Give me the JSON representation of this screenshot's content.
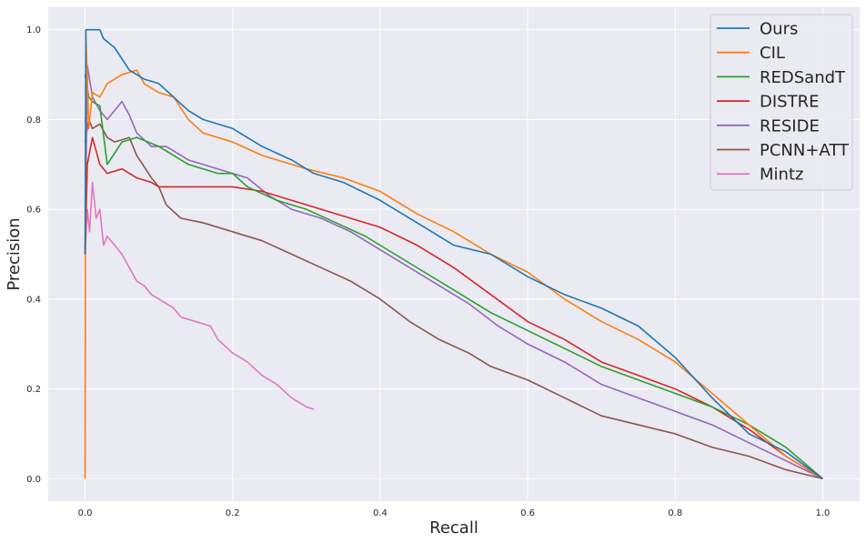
{
  "chart_data": {
    "type": "line",
    "title": "",
    "xlabel": "Recall",
    "ylabel": "Precision",
    "xlim": [
      -0.05,
      1.05
    ],
    "ylim": [
      -0.05,
      1.05
    ],
    "grid": true,
    "background": "#eaeaf2",
    "legend_position": "top-right",
    "x_ticks": [
      {
        "value": 0.0,
        "label": "0.0"
      },
      {
        "value": 0.2,
        "label": "0.2"
      },
      {
        "value": 0.4,
        "label": "0.4"
      },
      {
        "value": 0.6,
        "label": "0.6"
      },
      {
        "value": 0.8,
        "label": "0.8"
      },
      {
        "value": 1.0,
        "label": "1.0"
      }
    ],
    "y_ticks": [
      {
        "value": 0.0,
        "label": "0.0"
      },
      {
        "value": 0.2,
        "label": "0.2"
      },
      {
        "value": 0.4,
        "label": "0.4"
      },
      {
        "value": 0.6,
        "label": "0.6"
      },
      {
        "value": 0.8,
        "label": "0.8"
      },
      {
        "value": 1.0,
        "label": "1.0"
      }
    ],
    "series": [
      {
        "name": "Ours",
        "color": "#1f77b4",
        "points": [
          [
            0.0,
            0.5
          ],
          [
            0.001,
            1.0
          ],
          [
            0.02,
            1.0
          ],
          [
            0.025,
            0.98
          ],
          [
            0.04,
            0.96
          ],
          [
            0.06,
            0.91
          ],
          [
            0.08,
            0.89
          ],
          [
            0.1,
            0.88
          ],
          [
            0.12,
            0.85
          ],
          [
            0.14,
            0.82
          ],
          [
            0.16,
            0.8
          ],
          [
            0.2,
            0.78
          ],
          [
            0.24,
            0.74
          ],
          [
            0.28,
            0.71
          ],
          [
            0.31,
            0.68
          ],
          [
            0.35,
            0.66
          ],
          [
            0.4,
            0.62
          ],
          [
            0.45,
            0.57
          ],
          [
            0.5,
            0.52
          ],
          [
            0.55,
            0.5
          ],
          [
            0.6,
            0.45
          ],
          [
            0.65,
            0.41
          ],
          [
            0.7,
            0.38
          ],
          [
            0.75,
            0.34
          ],
          [
            0.8,
            0.27
          ],
          [
            0.85,
            0.18
          ],
          [
            0.9,
            0.1
          ],
          [
            0.95,
            0.06
          ],
          [
            1.0,
            0.0
          ]
        ]
      },
      {
        "name": "CIL",
        "color": "#ff7f0e",
        "points": [
          [
            0.0,
            0.0
          ],
          [
            0.001,
            1.0
          ],
          [
            0.005,
            0.78
          ],
          [
            0.01,
            0.86
          ],
          [
            0.02,
            0.85
          ],
          [
            0.03,
            0.88
          ],
          [
            0.05,
            0.9
          ],
          [
            0.07,
            0.91
          ],
          [
            0.08,
            0.88
          ],
          [
            0.1,
            0.86
          ],
          [
            0.12,
            0.85
          ],
          [
            0.14,
            0.8
          ],
          [
            0.16,
            0.77
          ],
          [
            0.2,
            0.75
          ],
          [
            0.24,
            0.72
          ],
          [
            0.28,
            0.7
          ],
          [
            0.3,
            0.69
          ],
          [
            0.35,
            0.67
          ],
          [
            0.4,
            0.64
          ],
          [
            0.45,
            0.59
          ],
          [
            0.5,
            0.55
          ],
          [
            0.55,
            0.5
          ],
          [
            0.6,
            0.46
          ],
          [
            0.65,
            0.4
          ],
          [
            0.7,
            0.35
          ],
          [
            0.75,
            0.31
          ],
          [
            0.8,
            0.26
          ],
          [
            0.85,
            0.19
          ],
          [
            0.9,
            0.12
          ],
          [
            0.95,
            0.05
          ],
          [
            1.0,
            0.0
          ]
        ]
      },
      {
        "name": "REDSandT",
        "color": "#2ca02c",
        "points": [
          [
            0.0,
            0.9
          ],
          [
            0.005,
            0.85
          ],
          [
            0.01,
            0.84
          ],
          [
            0.02,
            0.83
          ],
          [
            0.03,
            0.7
          ],
          [
            0.05,
            0.75
          ],
          [
            0.07,
            0.76
          ],
          [
            0.1,
            0.74
          ],
          [
            0.14,
            0.7
          ],
          [
            0.18,
            0.68
          ],
          [
            0.2,
            0.68
          ],
          [
            0.22,
            0.65
          ],
          [
            0.26,
            0.62
          ],
          [
            0.3,
            0.6
          ],
          [
            0.34,
            0.57
          ],
          [
            0.38,
            0.54
          ],
          [
            0.42,
            0.5
          ],
          [
            0.46,
            0.46
          ],
          [
            0.5,
            0.42
          ],
          [
            0.55,
            0.37
          ],
          [
            0.6,
            0.33
          ],
          [
            0.65,
            0.29
          ],
          [
            0.7,
            0.25
          ],
          [
            0.75,
            0.22
          ],
          [
            0.8,
            0.19
          ],
          [
            0.85,
            0.16
          ],
          [
            0.9,
            0.12
          ],
          [
            0.95,
            0.07
          ],
          [
            1.0,
            0.0
          ]
        ]
      },
      {
        "name": "DISTRE",
        "color": "#d62728",
        "points": [
          [
            0.0,
            0.5
          ],
          [
            0.003,
            0.7
          ],
          [
            0.01,
            0.76
          ],
          [
            0.015,
            0.73
          ],
          [
            0.02,
            0.7
          ],
          [
            0.03,
            0.68
          ],
          [
            0.05,
            0.69
          ],
          [
            0.07,
            0.67
          ],
          [
            0.09,
            0.66
          ],
          [
            0.1,
            0.65
          ],
          [
            0.14,
            0.65
          ],
          [
            0.2,
            0.65
          ],
          [
            0.24,
            0.64
          ],
          [
            0.28,
            0.62
          ],
          [
            0.32,
            0.6
          ],
          [
            0.36,
            0.58
          ],
          [
            0.4,
            0.56
          ],
          [
            0.45,
            0.52
          ],
          [
            0.5,
            0.47
          ],
          [
            0.55,
            0.41
          ],
          [
            0.6,
            0.35
          ],
          [
            0.65,
            0.31
          ],
          [
            0.7,
            0.26
          ],
          [
            0.75,
            0.23
          ],
          [
            0.8,
            0.2
          ],
          [
            0.85,
            0.16
          ],
          [
            0.9,
            0.11
          ],
          [
            0.95,
            0.05
          ],
          [
            1.0,
            0.0
          ]
        ]
      },
      {
        "name": "RESIDE",
        "color": "#9467bd",
        "points": [
          [
            0.0,
            0.5
          ],
          [
            0.003,
            0.92
          ],
          [
            0.01,
            0.85
          ],
          [
            0.02,
            0.82
          ],
          [
            0.03,
            0.8
          ],
          [
            0.05,
            0.84
          ],
          [
            0.06,
            0.81
          ],
          [
            0.07,
            0.77
          ],
          [
            0.09,
            0.74
          ],
          [
            0.11,
            0.74
          ],
          [
            0.14,
            0.71
          ],
          [
            0.18,
            0.69
          ],
          [
            0.22,
            0.67
          ],
          [
            0.25,
            0.63
          ],
          [
            0.28,
            0.6
          ],
          [
            0.32,
            0.58
          ],
          [
            0.36,
            0.55
          ],
          [
            0.4,
            0.51
          ],
          [
            0.44,
            0.47
          ],
          [
            0.48,
            0.43
          ],
          [
            0.52,
            0.39
          ],
          [
            0.56,
            0.34
          ],
          [
            0.6,
            0.3
          ],
          [
            0.65,
            0.26
          ],
          [
            0.7,
            0.21
          ],
          [
            0.75,
            0.18
          ],
          [
            0.8,
            0.15
          ],
          [
            0.85,
            0.12
          ],
          [
            0.9,
            0.08
          ],
          [
            0.95,
            0.04
          ],
          [
            1.0,
            0.0
          ]
        ]
      },
      {
        "name": "PCNN+ATT",
        "color": "#8c564b",
        "points": [
          [
            0.0,
            0.75
          ],
          [
            0.005,
            0.8
          ],
          [
            0.01,
            0.78
          ],
          [
            0.02,
            0.79
          ],
          [
            0.03,
            0.76
          ],
          [
            0.04,
            0.75
          ],
          [
            0.06,
            0.76
          ],
          [
            0.07,
            0.72
          ],
          [
            0.09,
            0.67
          ],
          [
            0.1,
            0.65
          ],
          [
            0.11,
            0.61
          ],
          [
            0.13,
            0.58
          ],
          [
            0.16,
            0.57
          ],
          [
            0.2,
            0.55
          ],
          [
            0.24,
            0.53
          ],
          [
            0.28,
            0.5
          ],
          [
            0.32,
            0.47
          ],
          [
            0.36,
            0.44
          ],
          [
            0.4,
            0.4
          ],
          [
            0.44,
            0.35
          ],
          [
            0.48,
            0.31
          ],
          [
            0.52,
            0.28
          ],
          [
            0.55,
            0.25
          ],
          [
            0.6,
            0.22
          ],
          [
            0.65,
            0.18
          ],
          [
            0.7,
            0.14
          ],
          [
            0.75,
            0.12
          ],
          [
            0.8,
            0.1
          ],
          [
            0.85,
            0.07
          ],
          [
            0.9,
            0.05
          ],
          [
            0.95,
            0.02
          ],
          [
            1.0,
            0.0
          ]
        ]
      },
      {
        "name": "Mintz",
        "color": "#e377c2",
        "points": [
          [
            0.0,
            0.5
          ],
          [
            0.003,
            0.6
          ],
          [
            0.006,
            0.55
          ],
          [
            0.01,
            0.66
          ],
          [
            0.015,
            0.58
          ],
          [
            0.02,
            0.6
          ],
          [
            0.025,
            0.52
          ],
          [
            0.03,
            0.54
          ],
          [
            0.04,
            0.52
          ],
          [
            0.05,
            0.5
          ],
          [
            0.06,
            0.47
          ],
          [
            0.07,
            0.44
          ],
          [
            0.08,
            0.43
          ],
          [
            0.09,
            0.41
          ],
          [
            0.1,
            0.4
          ],
          [
            0.12,
            0.38
          ],
          [
            0.13,
            0.36
          ],
          [
            0.15,
            0.35
          ],
          [
            0.17,
            0.34
          ],
          [
            0.18,
            0.31
          ],
          [
            0.2,
            0.28
          ],
          [
            0.22,
            0.26
          ],
          [
            0.24,
            0.23
          ],
          [
            0.26,
            0.21
          ],
          [
            0.28,
            0.18
          ],
          [
            0.3,
            0.16
          ],
          [
            0.31,
            0.155
          ]
        ]
      }
    ]
  }
}
